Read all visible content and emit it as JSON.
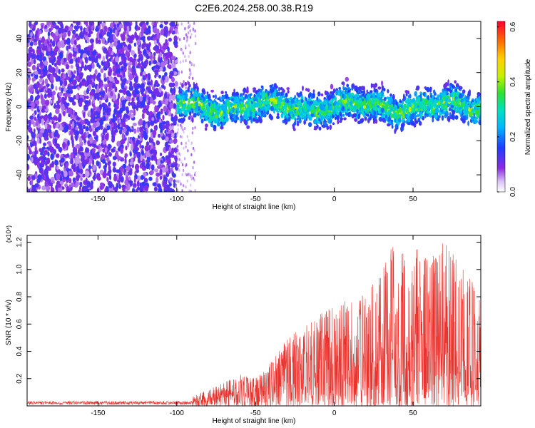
{
  "title": "C2E6.2024.258.00.38.R19",
  "colors": {
    "snr_line": "#e8342f",
    "axis": "#000000",
    "background": "#ffffff"
  },
  "chart_data": [
    {
      "type": "heatmap",
      "xlabel": "Height of straight line (km)",
      "ylabel": "Frequency (Hz)",
      "xlim": [
        -195,
        93
      ],
      "ylim": [
        -50,
        50
      ],
      "xticks": [
        -150,
        -100,
        -50,
        0,
        50
      ],
      "yticks": [
        -40,
        -20,
        0,
        20,
        40
      ],
      "colorbar": {
        "label": "Normalized spectral amplitude",
        "range": [
          0.0,
          0.62
        ],
        "ticks": [
          0.0,
          0.2,
          0.4,
          0.6
        ],
        "tick_labels": [
          "0.0",
          "0.2",
          "0.4",
          "0.6"
        ],
        "colormap": "rainbow"
      },
      "regions": [
        {
          "x_range": [
            -195,
            -100
          ],
          "description": "broadband noise",
          "amplitude_range": [
            0.05,
            0.15
          ]
        },
        {
          "x_range": [
            -100,
            93
          ],
          "description": "signal band",
          "center_frequency": 0,
          "half_width": 10,
          "amplitude_range": [
            0.1,
            0.45
          ]
        }
      ]
    },
    {
      "type": "line",
      "xlabel": "Height of straight line (km)",
      "ylabel": "SNR (10 * v/v)",
      "scale_label": "(x10⁴)",
      "xlim": [
        -195,
        93
      ],
      "ylim": [
        0,
        1.25
      ],
      "xticks": [
        -150,
        -100,
        -50,
        0,
        50
      ],
      "yticks": [
        0.2,
        0.4,
        0.6,
        0.8,
        1.0,
        1.2
      ],
      "ytick_labels": [
        "0.2",
        "0.4",
        "0.6",
        "0.8",
        "1.0",
        "1.2"
      ],
      "envelope": {
        "x": [
          -195,
          -150,
          -100,
          -90,
          -80,
          -70,
          -60,
          -50,
          -40,
          -30,
          -20,
          -10,
          0,
          10,
          20,
          30,
          40,
          50,
          60,
          70,
          80,
          93
        ],
        "y_max": [
          0.03,
          0.03,
          0.04,
          0.07,
          0.12,
          0.17,
          0.24,
          0.2,
          0.33,
          0.5,
          0.58,
          0.68,
          0.74,
          0.78,
          0.82,
          1.0,
          1.25,
          1.18,
          1.1,
          1.22,
          1.02,
          0.9
        ]
      }
    }
  ]
}
